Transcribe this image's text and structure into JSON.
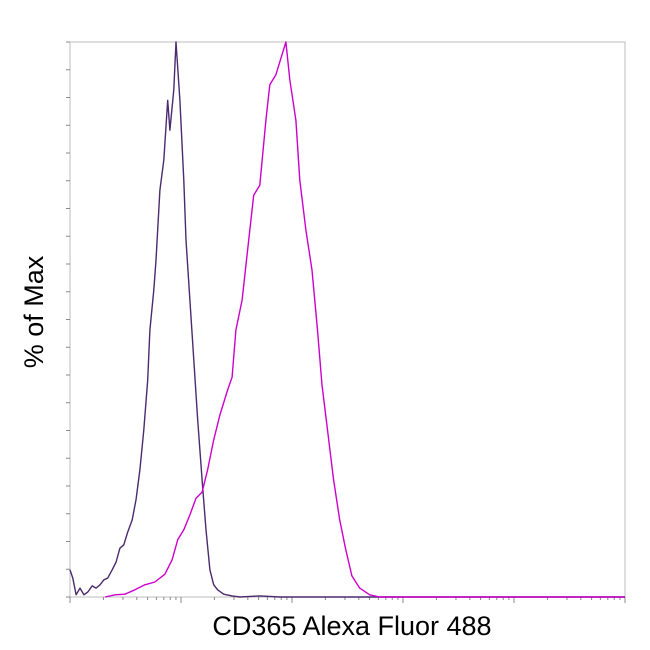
{
  "chart_data": {
    "type": "line",
    "xlabel": "CD365 Alexa Fluor 488",
    "ylabel": "% of Max",
    "xlim": [
      0,
      1000
    ],
    "ylim": [
      0,
      100
    ],
    "series": [
      {
        "color": "#4b2a6e",
        "x": [
          0,
          5,
          11,
          18,
          25,
          32,
          40,
          47,
          54,
          61,
          68,
          76,
          83,
          90,
          97,
          104,
          112,
          119,
          126,
          133,
          140,
          144,
          151,
          155,
          162,
          169,
          176,
          180,
          187,
          191,
          198,
          205,
          209,
          216,
          223,
          230,
          238,
          245,
          252,
          259,
          266,
          277,
          292,
          306,
          342,
          378,
          1000
        ],
        "values": [
          4.9,
          3.4,
          0.4,
          1.6,
          0.4,
          0.9,
          2.0,
          1.6,
          2.2,
          3.1,
          3.4,
          4.9,
          6.3,
          8.8,
          9.4,
          11.7,
          13.9,
          17.5,
          22.9,
          30.1,
          39.1,
          48.1,
          55.3,
          60.7,
          73.3,
          78.7,
          89.5,
          84.1,
          91.4,
          100,
          89.5,
          75.1,
          64.3,
          53.5,
          42.7,
          31.9,
          21.1,
          12.1,
          4.9,
          2.2,
          1.3,
          0.5,
          0.2,
          0,
          0.2,
          0,
          0
        ]
      },
      {
        "color": "#cc00cc",
        "x": [
          63,
          81,
          99,
          117,
          135,
          153,
          171,
          184,
          194,
          205,
          216,
          227,
          238,
          248,
          259,
          270,
          284,
          292,
          299,
          310,
          320,
          331,
          342,
          353,
          360,
          371,
          389,
          396,
          407,
          414,
          425,
          436,
          446,
          454,
          464,
          475,
          486,
          497,
          508,
          522,
          540,
          558,
          1000
        ],
        "values": [
          0,
          0.4,
          0.5,
          1.3,
          2.2,
          2.7,
          4.1,
          6.7,
          10.3,
          12.1,
          14.8,
          17.8,
          18.9,
          22.9,
          28.3,
          32.8,
          37.3,
          39.6,
          48.1,
          53.5,
          62.5,
          72.4,
          74.2,
          85.9,
          92.3,
          94.1,
          100,
          93.2,
          85.9,
          75.1,
          66.1,
          58.9,
          48.1,
          38.2,
          30.1,
          21.1,
          13.9,
          8.5,
          3.8,
          1.6,
          0.4,
          0,
          0
        ]
      }
    ]
  }
}
